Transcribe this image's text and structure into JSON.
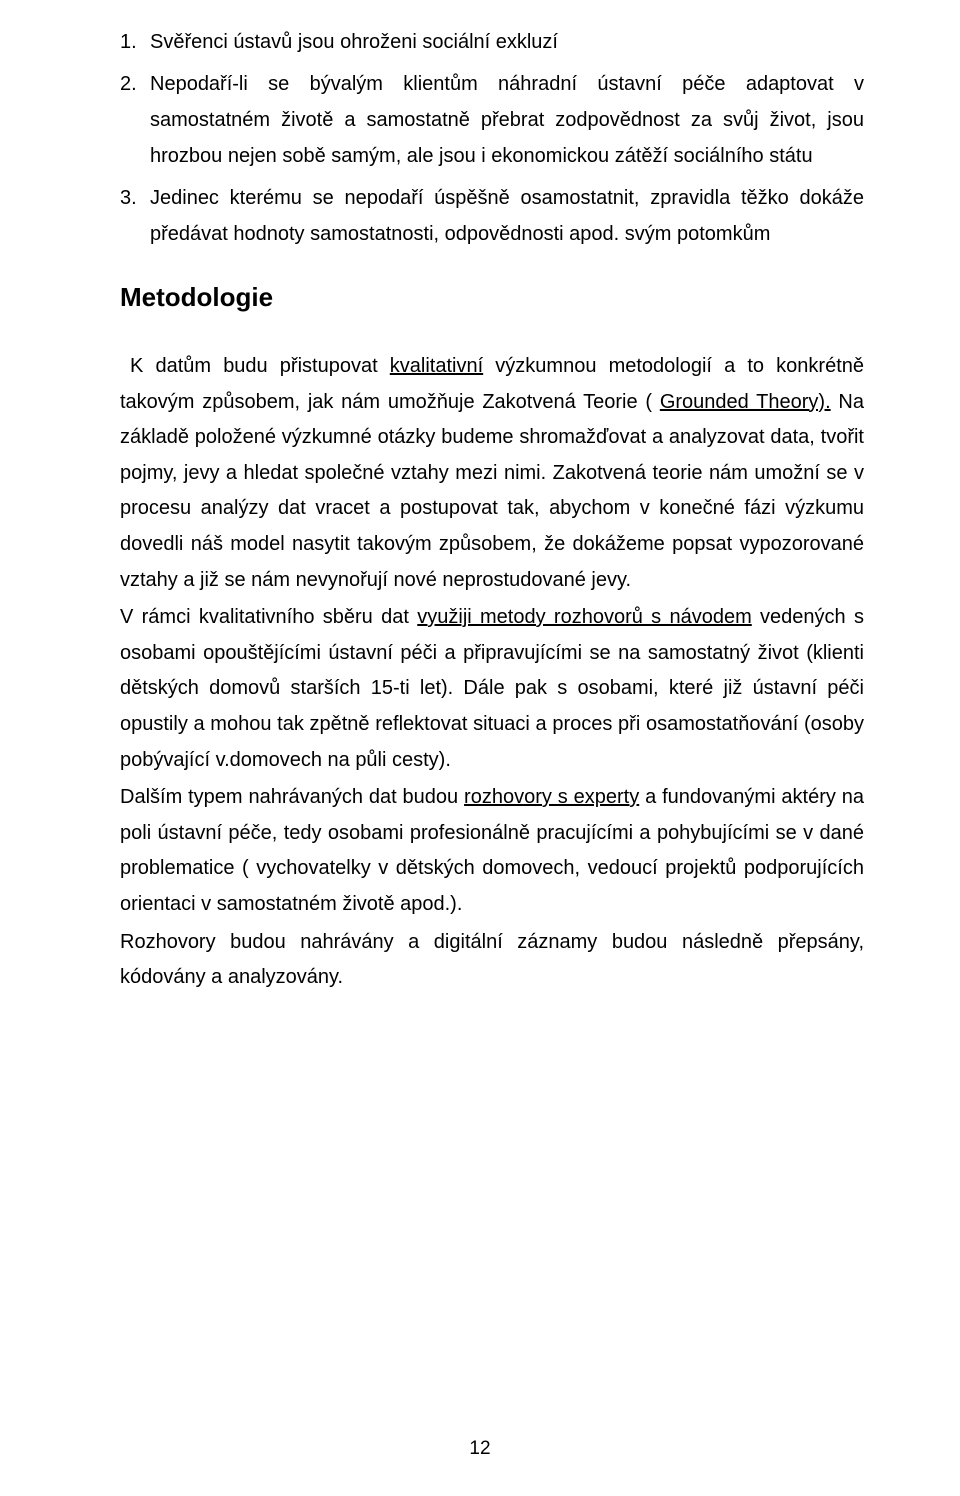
{
  "list": {
    "items": [
      {
        "num": "1.",
        "text": "Svěřenci ústavů jsou ohroženi sociální exkluzí"
      },
      {
        "num": "2.",
        "text": "Nepodaří-li se bývalým klientům náhradní ústavní péče adaptovat v samostatném životě a samostatně přebrat zodpovědnost za svůj život, jsou hrozbou nejen sobě samým, ale jsou i ekonomickou zátěží sociálního státu"
      },
      {
        "num": "3.",
        "text": "Jedinec kterému se nepodaří úspěšně osamostatnit, zpravidla těžko dokáže předávat hodnoty samostatnosti, odpovědnosti apod. svým potomkům"
      }
    ]
  },
  "heading": "Metodologie",
  "paragraphs": {
    "p1a": "K datům budu přistupovat ",
    "p1u1": "kvalitativní",
    "p1b": " výzkumnou metodologií a to konkrétně takovým způsobem, jak nám umožňuje Zakotvená Teorie ( ",
    "p1u2": "Grounded Theory).",
    "p1c": " Na základě položené výzkumné otázky budeme shromažďovat a analyzovat data, tvořit pojmy, jevy a hledat společné vztahy mezi nimi. Zakotvená teorie nám umožní se v procesu analýzy dat vracet a postupovat tak, abychom v konečné fázi výzkumu dovedli náš model nasytit takovým způsobem, že dokážeme popsat vypozorované vztahy a již se nám nevynořují nové neprostudované jevy.",
    "p2a": "V rámci kvalitativního sběru dat ",
    "p2u1": "využiji metody rozhovorů s návodem",
    "p2b": " vedených s osobami opouštějícími ústavní péči a připravujícími se na samostatný život (klienti dětských domovů starších 15-ti let). Dále pak s osobami, které již ústavní péči opustily a mohou tak zpětně reflektovat situaci a proces při osamostatňování (osoby pobývající v.domovech na půli cesty).",
    "p3a": "Dalším typem nahrávaných dat budou ",
    "p3u1": "rozhovory s experty",
    "p3b": " a fundovanými aktéry na poli ústavní péče, tedy osobami profesionálně pracujícími a pohybujícími se v dané problematice ( vychovatelky v dětských domovech, vedoucí projektů podporujících orientaci v samostatném životě apod.).",
    "p4": "Rozhovory budou nahrávány a digitální záznamy budou následně přepsány, kódovány a analyzovány."
  },
  "pageNumber": "12",
  "colors": {
    "text": "#000000",
    "background": "#ffffff"
  }
}
